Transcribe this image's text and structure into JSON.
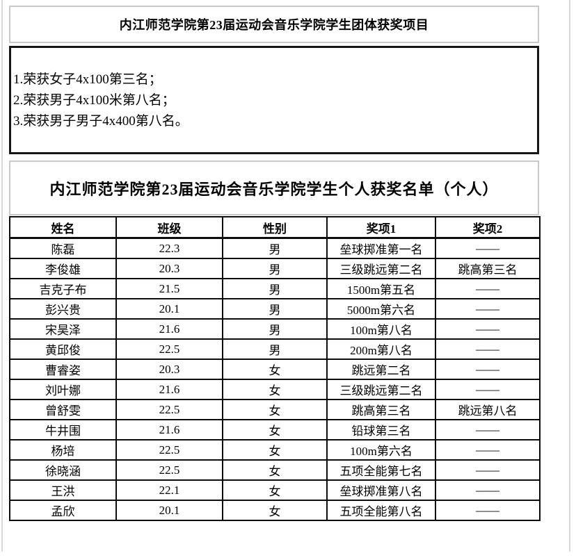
{
  "team_section": {
    "title": "内江师范学院第23届运动会音乐学院学生团体获奖项目",
    "items": [
      "1.荣获女子4x100第三名；",
      "2.荣获男子4x100米第八名；",
      "3.荣获男子男子4x400第八名。"
    ]
  },
  "individual_section": {
    "title": "内江师范学院第23届运动会音乐学院学生个人获奖名单（个人）",
    "table": {
      "headers": [
        "姓名",
        "班级",
        "性别",
        "奖项1",
        "奖项2"
      ],
      "rows": [
        [
          "陈磊",
          "22.3",
          "男",
          "垒球掷准第一名",
          "——"
        ],
        [
          "李俊雄",
          "20.3",
          "男",
          "三级跳远第二名",
          "跳高第三名"
        ],
        [
          "吉克子布",
          "21.5",
          "男",
          "1500m第五名",
          "——"
        ],
        [
          "彭兴贵",
          "20.1",
          "男",
          "5000m第六名",
          "——"
        ],
        [
          "宋昊泽",
          "21.6",
          "男",
          "100m第八名",
          "——"
        ],
        [
          "黄邱俊",
          "22.5",
          "男",
          "200m第八名",
          "——"
        ],
        [
          "曹睿姿",
          "20.3",
          "女",
          "跳远第二名",
          "——"
        ],
        [
          "刘叶娜",
          "21.6",
          "女",
          "三级跳远第二名",
          "——"
        ],
        [
          "曾舒雯",
          "22.5",
          "女",
          "跳高第三名",
          "跳远第八名"
        ],
        [
          "牛井围",
          "21.6",
          "女",
          "铅球第三名",
          "——"
        ],
        [
          "杨培",
          "22.5",
          "女",
          "100m第六名",
          "——"
        ],
        [
          "徐晓涵",
          "22.5",
          "女",
          "五项全能第七名",
          "——"
        ],
        [
          "王洪",
          "22.1",
          "女",
          "垒球掷准第八名",
          "——"
        ],
        [
          "孟欣",
          "20.1",
          "女",
          "五项全能第八名",
          "——"
        ]
      ]
    }
  },
  "colors": {
    "table_border": "#0c0c0c",
    "heavy_box_border": "#161616",
    "light_box_border": "#c9c9c9",
    "background": "#ffffff",
    "text": "#000000"
  }
}
